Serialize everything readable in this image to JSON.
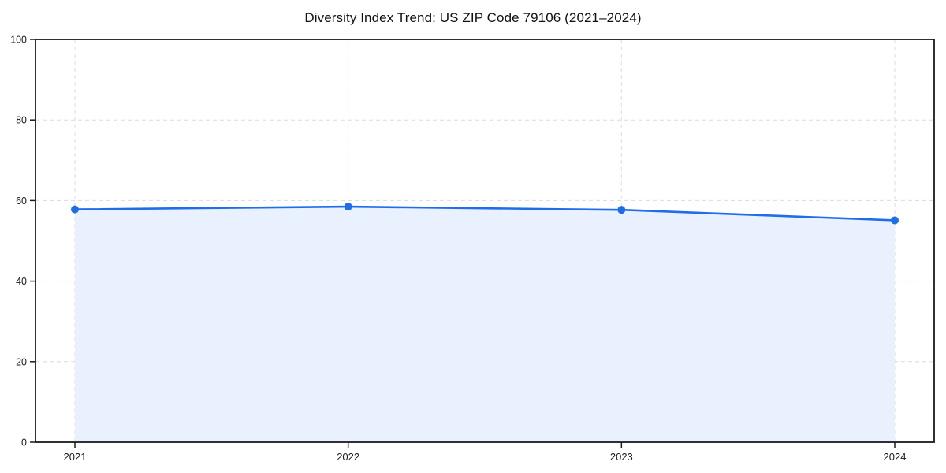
{
  "chart_data": {
    "type": "area",
    "title": "Diversity Index Trend: US ZIP Code 79106 (2021–2024)",
    "categories": [
      "2021",
      "2022",
      "2023",
      "2024"
    ],
    "series": [
      {
        "name": "Diversity Index",
        "values": [
          57.8,
          58.5,
          57.7,
          55.1
        ]
      }
    ],
    "xlabel": "",
    "ylabel": "",
    "ylim": [
      0,
      100
    ],
    "yticks": [
      0,
      20,
      40,
      60,
      80,
      100
    ],
    "grid": true,
    "legend": false,
    "colors": {
      "line": "#1f6ee8",
      "marker": "#1f6ee8",
      "fill": "#e8f1fd",
      "grid": "#dcdcdc",
      "spine": "#1a1a1a",
      "tick_text": "#1a1a1a",
      "background": "#ffffff"
    }
  }
}
